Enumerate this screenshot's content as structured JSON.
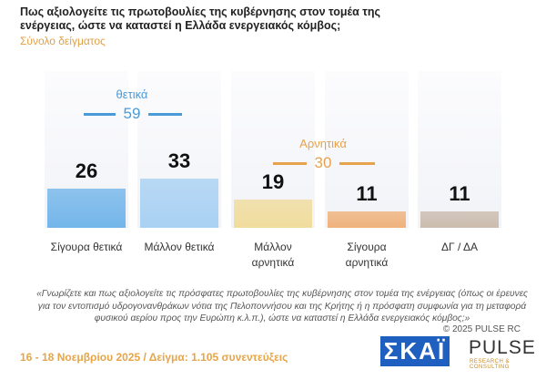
{
  "chart_data": {
    "type": "bar",
    "title": "Πως αξιολογείτε τις πρωτοβουλίες της κυβέρνησης στον τομέα της ενέργειας, ώστε να καταστεί η Ελλάδα ενεργειακός κόμβος;",
    "subtitle": "Σύνολο δείγματος",
    "categories": [
      "Σίγουρα θετικά",
      "Μάλλον θετικά",
      "Μάλλον αρνητικά",
      "Σίγουρα αρνητικά",
      "ΔΓ / ΔΑ"
    ],
    "values": [
      26,
      33,
      19,
      11,
      11
    ],
    "colors": [
      "#74b6ea",
      "#a9d1f3",
      "#f0dc9c",
      "#efb27c",
      "#cbbcae"
    ],
    "groups": [
      {
        "name": "θετικά",
        "value": 59,
        "color": "#4a9ad8"
      },
      {
        "name": "Αρνητικά",
        "value": 30,
        "color": "#e7a24c"
      }
    ],
    "note": "«Γνωρίζετε και πως αξιολογείτε τις πρόσφατες πρωτοβουλίες της κυβέρνησης στον τομέα της ενέργειας (όπως οι έρευνες για τον εντοπισμό υδρογονανθράκων νότια της Πελοποννήσου και της Κρήτης ή η πρόσφατη συμφωνία για τη μεταφορά φυσικού αερίου προς την Ευρώπη κ.λ.π.), ώστε να καταστεί η Ελλάδα ενεργειακός κόμβος;»",
    "copyright": "© 2025 PULSE RC",
    "footer": "16 - 18 Νοεμβρίου 2025  /  Δείγμα:  1.105 συνεντεύξεις",
    "logos": [
      "ΣΚΑΪ",
      "PULSE",
      "RESEARCH & CONSULTING"
    ]
  }
}
